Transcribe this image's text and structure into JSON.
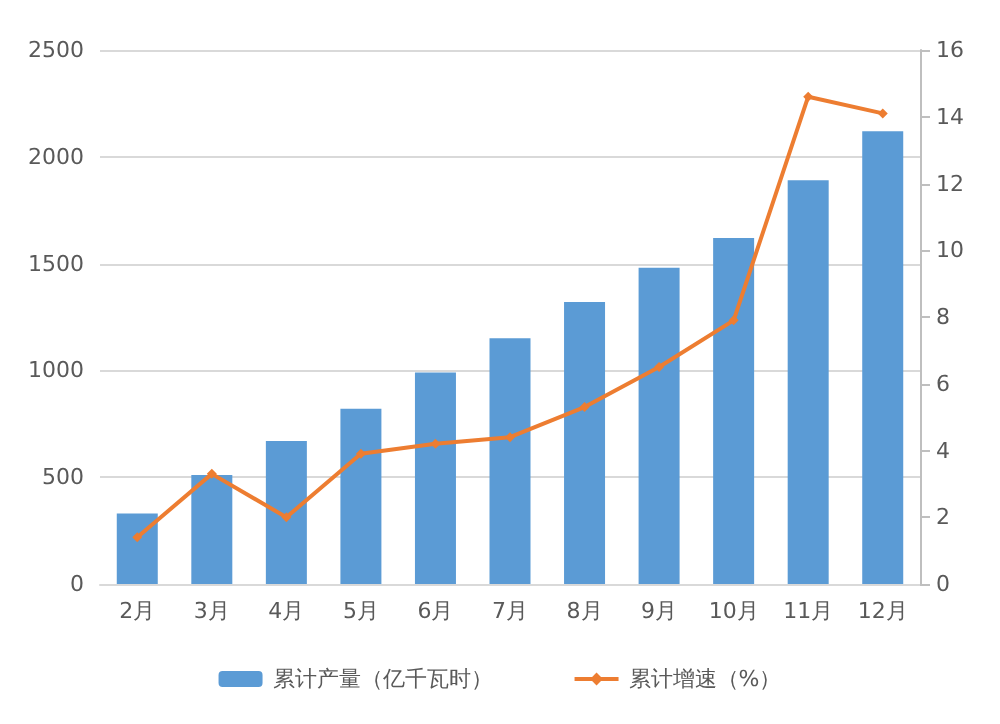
{
  "chart_data": {
    "type": "bar",
    "categories": [
      "2月",
      "3月",
      "4月",
      "5月",
      "6月",
      "7月",
      "8月",
      "9月",
      "10月",
      "11月",
      "12月"
    ],
    "series": [
      {
        "name": "累计产量（亿千瓦时）",
        "color": "#5b9bd5",
        "values": [
          330,
          510,
          670,
          820,
          990,
          1150,
          1320,
          1480,
          1620,
          1890,
          2120
        ]
      },
      {
        "name": "累计增速（%）",
        "type": "line",
        "axis": "y2",
        "color": "#ed7d31",
        "marker": "diamond",
        "values": [
          1.4,
          3.3,
          2.0,
          3.9,
          4.2,
          4.4,
          5.3,
          6.5,
          7.9,
          14.6,
          14.1
        ]
      }
    ],
    "ylim": [
      0,
      2500
    ],
    "yticks": [
      0,
      500,
      1000,
      1500,
      2000,
      2500
    ],
    "y2lim": [
      0,
      16
    ],
    "y2ticks": [
      0,
      2,
      4,
      6,
      8,
      10,
      12,
      14,
      16
    ],
    "grid": "y",
    "legend": "bottom"
  }
}
